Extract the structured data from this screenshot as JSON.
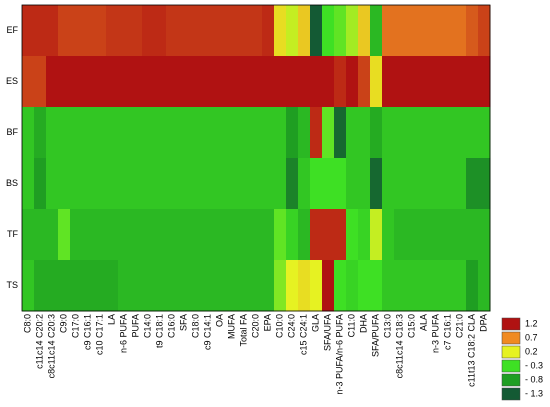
{
  "chart_data": {
    "type": "heatmap",
    "rows": [
      "EF",
      "ES",
      "BF",
      "BS",
      "TF",
      "TS"
    ],
    "categories": [
      "C8:0",
      "c11c14 C20:2",
      "c8c11c14 C20:3",
      "C9:0",
      "C17:0",
      "c9 C16:1",
      "c10 C17:1",
      "LA",
      "n-6 PUFA",
      "PUFA",
      "C14:0",
      "t9 C18:1",
      "C16:0",
      "SFA",
      "C18:0",
      "c9 C14:1",
      "OA",
      "MUFA",
      "Total FA",
      "C20:0",
      "EPA",
      "C10:0",
      "C24:0",
      "c15 C24:1",
      "GLA",
      "SFA/UFA",
      "n-3 PUFA/n-6 PUFA",
      "C11:0",
      "DHA",
      "SFA/PUFA",
      "C13:0",
      "c8c11c14 C18:3",
      "C15:0",
      "ALA",
      "n-3 PUFA",
      "c7 C16:1",
      "C21:0",
      "c11t13 C18:2 CLA",
      "DPA"
    ],
    "values": [
      [
        1.1,
        1.1,
        1.1,
        1.0,
        1.0,
        1.0,
        1.0,
        1.05,
        1.05,
        1.05,
        1.1,
        1.1,
        1.05,
        1.05,
        1.05,
        1.05,
        1.05,
        1.05,
        1.05,
        1.05,
        1.1,
        0.3,
        0.1,
        0.4,
        -1.3,
        -0.3,
        -0.2,
        0.0,
        0.4,
        -0.6,
        0.8,
        0.8,
        0.8,
        0.8,
        0.8,
        0.8,
        0.8,
        0.9,
        1.0
      ],
      [
        1.0,
        1.0,
        1.3,
        1.3,
        1.3,
        1.3,
        1.3,
        1.3,
        1.3,
        1.3,
        1.3,
        1.3,
        1.3,
        1.3,
        1.3,
        1.3,
        1.3,
        1.3,
        1.3,
        1.3,
        1.3,
        1.3,
        1.3,
        1.3,
        1.3,
        1.3,
        1.1,
        1.3,
        1.0,
        0.3,
        1.3,
        1.3,
        1.3,
        1.3,
        1.3,
        1.3,
        1.3,
        1.3,
        1.3
      ],
      [
        -0.5,
        -0.7,
        -0.5,
        -0.5,
        -0.5,
        -0.5,
        -0.5,
        -0.5,
        -0.5,
        -0.5,
        -0.5,
        -0.5,
        -0.5,
        -0.5,
        -0.5,
        -0.5,
        -0.5,
        -0.5,
        -0.5,
        -0.5,
        -0.5,
        -0.5,
        -0.8,
        -0.6,
        1.1,
        -0.2,
        -1.2,
        -0.5,
        -0.5,
        -0.7,
        -0.5,
        -0.5,
        -0.5,
        -0.5,
        -0.5,
        -0.5,
        -0.5,
        -0.5,
        -0.5
      ],
      [
        -0.5,
        -0.8,
        -0.5,
        -0.5,
        -0.5,
        -0.5,
        -0.5,
        -0.5,
        -0.5,
        -0.5,
        -0.5,
        -0.5,
        -0.5,
        -0.5,
        -0.5,
        -0.5,
        -0.5,
        -0.5,
        -0.5,
        -0.5,
        -0.5,
        -0.5,
        -1.0,
        -0.5,
        -0.3,
        -0.3,
        -0.3,
        -0.5,
        -0.5,
        -1.2,
        -0.5,
        -0.5,
        -0.5,
        -0.5,
        -0.5,
        -0.5,
        -0.5,
        -0.9,
        -0.9
      ],
      [
        -0.6,
        -0.6,
        -0.6,
        -0.2,
        -0.6,
        -0.6,
        -0.6,
        -0.6,
        -0.6,
        -0.6,
        -0.6,
        -0.6,
        -0.6,
        -0.6,
        -0.6,
        -0.6,
        -0.6,
        -0.6,
        -0.6,
        -0.6,
        -0.6,
        -0.2,
        -0.4,
        -0.6,
        1.1,
        1.1,
        1.1,
        -0.3,
        -0.4,
        0.1,
        -0.5,
        -0.6,
        -0.6,
        -0.6,
        -0.6,
        -0.6,
        -0.6,
        -0.6,
        -0.6
      ],
      [
        -0.5,
        -0.7,
        -0.7,
        -0.7,
        -0.7,
        -0.7,
        -0.7,
        -0.7,
        -0.6,
        -0.6,
        -0.6,
        -0.6,
        -0.6,
        -0.6,
        -0.6,
        -0.6,
        -0.6,
        -0.6,
        -0.6,
        -0.6,
        -0.6,
        -0.1,
        0.2,
        0.3,
        0.2,
        1.3,
        -0.3,
        -0.4,
        -0.3,
        -0.3,
        -0.5,
        -0.5,
        -0.5,
        -0.5,
        -0.5,
        -0.5,
        -0.5,
        -0.8,
        -0.6
      ]
    ],
    "legend": [
      {
        "value": 1.2,
        "label": "1.2",
        "color": "#b01212"
      },
      {
        "value": 0.7,
        "label": "0.7",
        "color": "#f08a22"
      },
      {
        "value": 0.2,
        "label": "0.2",
        "color": "#e6f222"
      },
      {
        "value": -0.3,
        "label": "- 0.3",
        "color": "#3ee024"
      },
      {
        "value": -0.8,
        "label": "- 0.8",
        "color": "#1f9e22"
      },
      {
        "value": -1.3,
        "label": "- 1.3",
        "color": "#145a34"
      }
    ]
  }
}
